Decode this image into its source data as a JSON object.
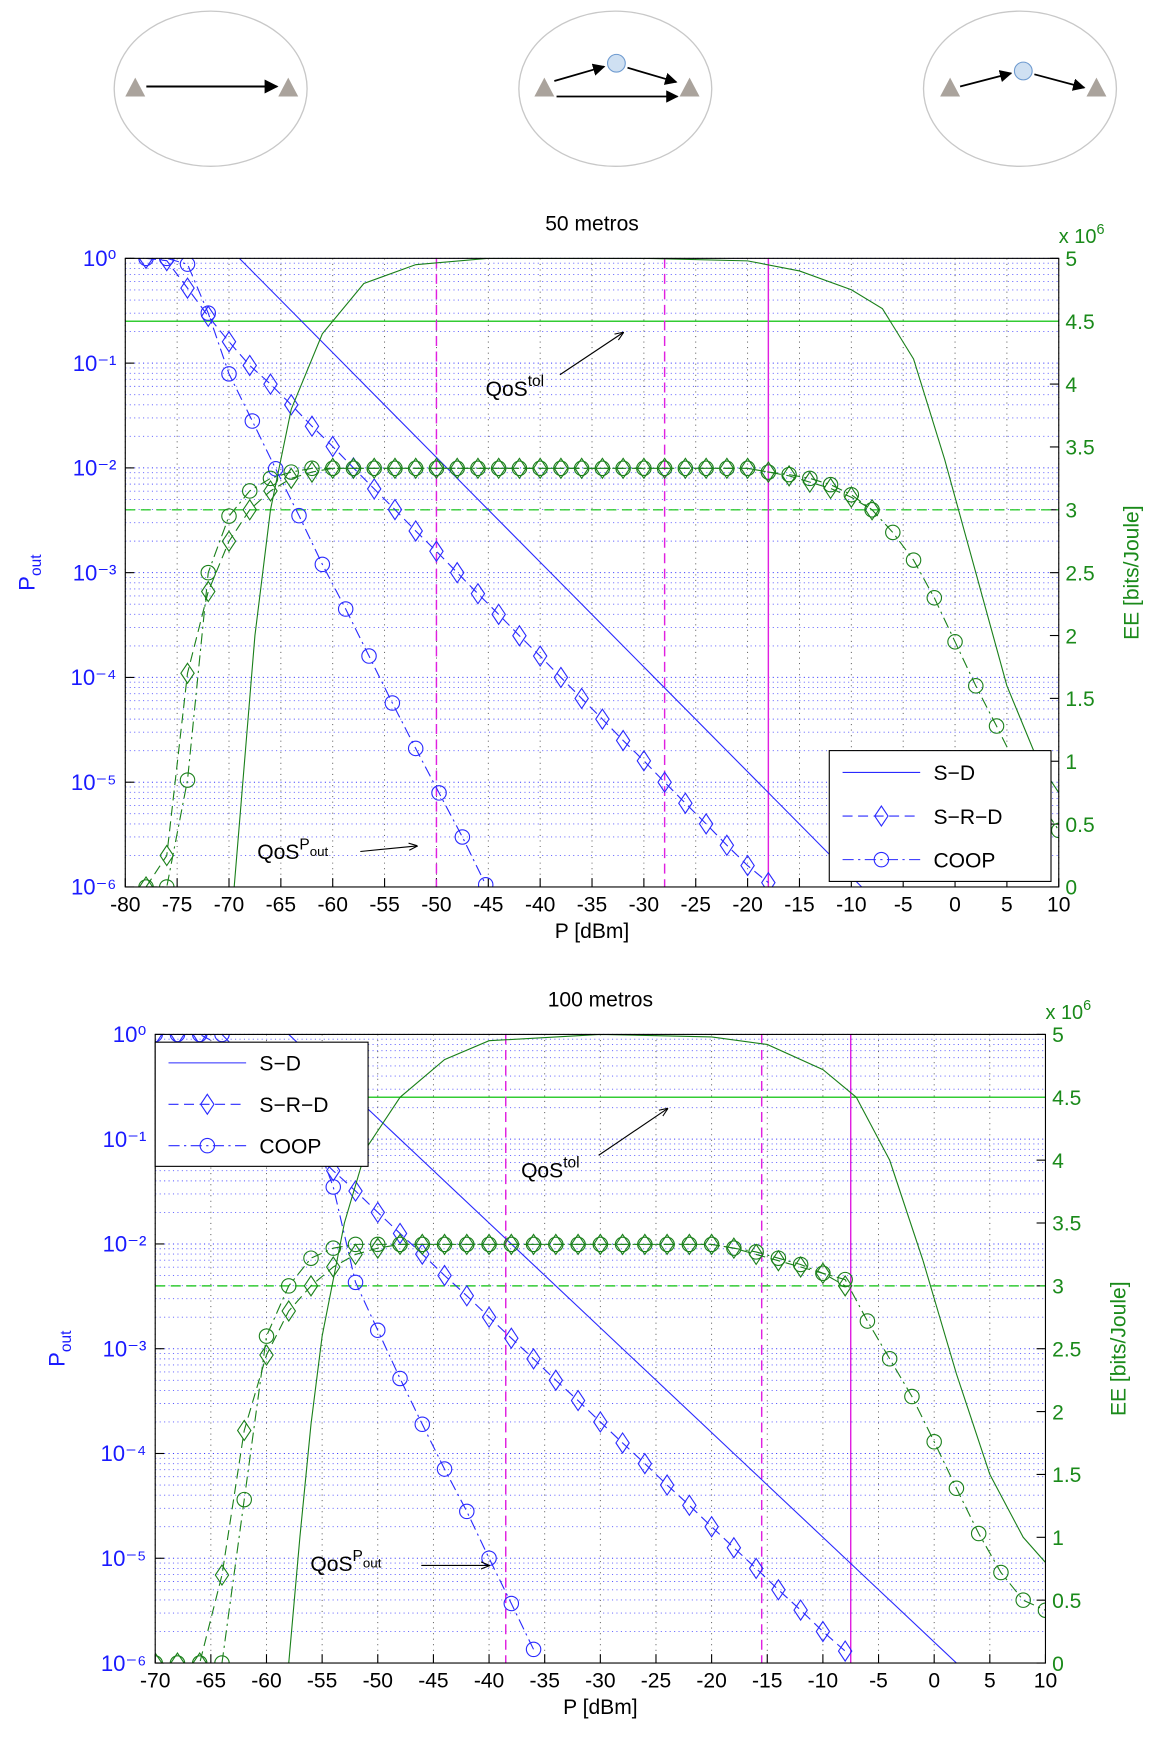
{
  "chart_data": [
    {
      "type": "line",
      "title": "50 metros",
      "xlabel": "P [dBm]",
      "ylabel": {
        "text": "P",
        "sub": "out"
      },
      "y2label": "EE [bits/Joule]",
      "y2_multiplier": {
        "text": "x 10",
        "sup": "6"
      },
      "xlim": [
        -80,
        10
      ],
      "xticks": [
        -80,
        -75,
        -70,
        -65,
        -60,
        -55,
        -50,
        -45,
        -40,
        -35,
        -30,
        -25,
        -20,
        -15,
        -10,
        -5,
        0,
        5,
        10
      ],
      "ylog": true,
      "ylim": [
        1e-06,
        1
      ],
      "yticks": [
        {
          "value": 1e-06,
          "label": "10⁻⁶"
        },
        {
          "value": 1e-05,
          "label": "10⁻⁵"
        },
        {
          "value": 0.0001,
          "label": "10⁻⁴"
        },
        {
          "value": 0.001,
          "label": "10⁻³"
        },
        {
          "value": 0.01,
          "label": "10⁻²"
        },
        {
          "value": 0.1,
          "label": "10⁻¹"
        },
        {
          "value": 1,
          "label": "10⁰"
        }
      ],
      "y2lim": [
        0,
        5
      ],
      "y2ticks": [
        0,
        0.5,
        1,
        1.5,
        2,
        2.5,
        3,
        3.5,
        4,
        4.5,
        5
      ],
      "grid": true,
      "ycolor": "#1a1aff",
      "y2color": "#1a8a1a",
      "legend": "lower right",
      "series": [
        {
          "name": "S−D",
          "color": "#2a2aff",
          "dash": "solid",
          "marker": null,
          "x": [
            -69,
            -59,
            -49,
            -39,
            -29,
            -19,
            -9
          ],
          "values": [
            1,
            0.1,
            0.01,
            0.001,
            0.0001,
            1e-05,
            1e-06
          ]
        },
        {
          "name": "S−R−D",
          "color": "#2a2aff",
          "dash": "dashed",
          "marker": "diamond",
          "x": [
            -78,
            -76,
            -74,
            -72,
            -70,
            -68,
            -66,
            -64,
            -62,
            -60,
            -58,
            -56,
            -54,
            -52,
            -50,
            -48,
            -46,
            -44,
            -42,
            -40,
            -38,
            -36,
            -34,
            -32,
            -30,
            -28,
            -26,
            -24,
            -22,
            -20,
            -18
          ],
          "values": [
            1,
            0.95,
            0.52,
            0.28,
            0.16,
            0.095,
            0.063,
            0.04,
            0.025,
            0.016,
            0.01,
            0.0063,
            0.004,
            0.0025,
            0.0016,
            0.001,
            0.00063,
            0.0004,
            0.00025,
            0.00016,
            0.0001,
            6.3e-05,
            4e-05,
            2.5e-05,
            1.6e-05,
            1e-05,
            6.3e-06,
            4e-06,
            2.5e-06,
            1.6e-06,
            1.1e-06
          ]
        },
        {
          "name": "COOP",
          "color": "#2a2aff",
          "dash": "dashdot",
          "marker": "circle",
          "x": [
            -78,
            -76,
            -74,
            -72,
            -70,
            -67.75,
            -65.5,
            -63.25,
            -61,
            -58.75,
            -56.5,
            -54.25,
            -52,
            -49.75,
            -47.5,
            -45.25
          ],
          "values": [
            1,
            1,
            0.88,
            0.3,
            0.079,
            0.028,
            0.0098,
            0.0035,
            0.0012,
            0.00045,
            0.00016,
            5.7e-05,
            2.1e-05,
            7.9e-06,
            3e-06,
            1.05e-06
          ]
        },
        {
          "axis": "y2",
          "color": "#1a801a",
          "dash": "solid",
          "marker": null,
          "x": [
            -69.5,
            -68.5,
            -67.5,
            -66,
            -64,
            -61,
            -57,
            -52,
            -45,
            -30,
            -20,
            -15,
            -10,
            -7,
            -4,
            -1,
            2,
            5,
            8,
            10
          ],
          "values": [
            0,
            1,
            2,
            3,
            3.8,
            4.4,
            4.8,
            4.95,
            5,
            5,
            4.98,
            4.9,
            4.75,
            4.6,
            4.2,
            3.4,
            2.5,
            1.6,
            1,
            0.75
          ]
        },
        {
          "axis": "y2",
          "color": "#1a801a",
          "dash": "dashed",
          "marker": "diamond",
          "x": [
            -78,
            -76,
            -74,
            -72,
            -70,
            -68,
            -66,
            -64,
            -62,
            -60,
            -58,
            -56,
            -54,
            -52,
            -50,
            -48,
            -46,
            -44,
            -42,
            -40,
            -38,
            -36,
            -34,
            -32,
            -30,
            -28,
            -26,
            -24,
            -22,
            -20,
            -18,
            -16,
            -14,
            -12,
            -10,
            -8
          ],
          "values": [
            0,
            0.25,
            1.7,
            2.35,
            2.75,
            3,
            3.15,
            3.25,
            3.3,
            3.33,
            3.33,
            3.33,
            3.33,
            3.33,
            3.33,
            3.33,
            3.33,
            3.33,
            3.33,
            3.33,
            3.33,
            3.33,
            3.33,
            3.33,
            3.33,
            3.33,
            3.33,
            3.33,
            3.33,
            3.33,
            3.3,
            3.27,
            3.22,
            3.17,
            3.1,
            3
          ]
        },
        {
          "axis": "y2",
          "color": "#1a801a",
          "dash": "dashdot",
          "marker": "circle",
          "x": [
            -78,
            -76,
            -74,
            -72,
            -70,
            -68,
            -66,
            -64,
            -62,
            -60,
            -58,
            -56,
            -54,
            -52,
            -50,
            -48,
            -46,
            -44,
            -42,
            -40,
            -38,
            -36,
            -34,
            -32,
            -30,
            -28,
            -26,
            -24,
            -22,
            -20,
            -18,
            -16,
            -14,
            -12,
            -10,
            -8,
            -6,
            -4,
            -2,
            0,
            2,
            4,
            6,
            8,
            10
          ],
          "values": [
            0,
            0,
            0.85,
            2.5,
            2.95,
            3.15,
            3.25,
            3.3,
            3.33,
            3.33,
            3.33,
            3.33,
            3.33,
            3.33,
            3.33,
            3.33,
            3.33,
            3.33,
            3.33,
            3.33,
            3.33,
            3.33,
            3.33,
            3.33,
            3.33,
            3.33,
            3.33,
            3.33,
            3.33,
            3.33,
            3.3,
            3.28,
            3.25,
            3.2,
            3.12,
            3,
            2.82,
            2.6,
            2.3,
            1.95,
            1.6,
            1.28,
            0.95,
            0.7,
            0.45
          ]
        }
      ],
      "hlines": [
        {
          "y": 4.5,
          "axis": "y2",
          "color": "#33cc33",
          "dash": "solid"
        },
        {
          "y": 3,
          "axis": "y2",
          "color": "#33cc33",
          "dash": "dashed"
        }
      ],
      "vlines": [
        {
          "x": -50,
          "color": "#e020e0",
          "dash": "dashed"
        },
        {
          "x": -28,
          "color": "#e020e0",
          "dash": "dashed"
        },
        {
          "x": -18,
          "color": "#e020e0",
          "dash": "solid"
        }
      ],
      "annotations": [
        {
          "text": "QoS",
          "sup": "tol"
        },
        {
          "text": "QoS",
          "sup": "P",
          "sup_sub": "out"
        }
      ]
    },
    {
      "type": "line",
      "title": "100 metros",
      "xlabel": "P [dBm]",
      "ylabel": {
        "text": "P",
        "sub": "out"
      },
      "y2label": "EE [bits/Joule]",
      "y2_multiplier": {
        "text": "x 10",
        "sup": "6"
      },
      "xlim": [
        -70,
        10
      ],
      "xticks": [
        -70,
        -65,
        -60,
        -55,
        -50,
        -45,
        -40,
        -35,
        -30,
        -25,
        -20,
        -15,
        -10,
        -5,
        0,
        5,
        10
      ],
      "ylog": true,
      "ylim": [
        1e-06,
        1
      ],
      "yticks": [
        {
          "value": 1e-06,
          "label": "10⁻⁶"
        },
        {
          "value": 1e-05,
          "label": "10⁻⁵"
        },
        {
          "value": 0.0001,
          "label": "10⁻⁴"
        },
        {
          "value": 0.001,
          "label": "10⁻³"
        },
        {
          "value": 0.01,
          "label": "10⁻²"
        },
        {
          "value": 0.1,
          "label": "10⁻¹"
        },
        {
          "value": 1,
          "label": "10⁰"
        }
      ],
      "y2lim": [
        0,
        5
      ],
      "y2ticks": [
        0,
        0.5,
        1,
        1.5,
        2,
        2.5,
        3,
        3.5,
        4,
        4.5,
        5
      ],
      "grid": true,
      "ycolor": "#1a1aff",
      "y2color": "#1a8a1a",
      "legend": "upper left",
      "series": [
        {
          "name": "S−D",
          "color": "#2a2aff",
          "dash": "solid",
          "marker": null,
          "x": [
            -58,
            -48,
            -38,
            -28,
            -18,
            -8,
            2
          ],
          "values": [
            1,
            0.1,
            0.01,
            0.001,
            0.0001,
            1e-05,
            1e-06
          ]
        },
        {
          "name": "S−R−D",
          "color": "#2a2aff",
          "dash": "dashed",
          "marker": "diamond",
          "x": [
            -70,
            -68,
            -66,
            -62,
            -60,
            -58,
            -56,
            -54,
            -52,
            -50,
            -48,
            -46,
            -44,
            -42,
            -40,
            -38,
            -36,
            -34,
            -32,
            -30,
            -28,
            -26,
            -24,
            -22,
            -20,
            -18,
            -16,
            -14,
            -12,
            -10,
            -8
          ],
          "values": [
            1,
            1,
            1,
            0.6,
            0.35,
            0.2,
            0.08,
            0.05,
            0.032,
            0.02,
            0.0126,
            0.008,
            0.005,
            0.0032,
            0.002,
            0.00126,
            0.0008,
            0.0005,
            0.00032,
            0.0002,
            0.000126,
            8e-05,
            5e-05,
            3.2e-05,
            2e-05,
            1.26e-05,
            8e-06,
            5e-06,
            3.2e-06,
            2e-06,
            1.3e-06
          ]
        },
        {
          "name": "COOP",
          "color": "#2a2aff",
          "dash": "dashdot",
          "marker": "circle",
          "x": [
            -70,
            -68,
            -66,
            -64,
            -56,
            -54,
            -52,
            -50,
            -48,
            -46,
            -44,
            -42,
            -40,
            -38,
            -36
          ],
          "values": [
            1,
            1,
            1,
            1,
            0.13,
            0.035,
            0.0043,
            0.0015,
            0.00052,
            0.00019,
            7.1e-05,
            2.8e-05,
            1e-05,
            3.7e-06,
            1.35e-06
          ]
        },
        {
          "axis": "y2",
          "color": "#1a801a",
          "dash": "solid",
          "marker": null,
          "x": [
            -58,
            -57,
            -56,
            -55,
            -53,
            -51,
            -48,
            -44,
            -40,
            -30,
            -20,
            -15,
            -10,
            -7,
            -4,
            -1,
            2,
            5,
            8,
            10
          ],
          "values": [
            0,
            1,
            1.9,
            2.6,
            3.5,
            4.1,
            4.5,
            4.8,
            4.95,
            5,
            4.98,
            4.92,
            4.72,
            4.5,
            4,
            3.2,
            2.3,
            1.5,
            1,
            0.8
          ]
        },
        {
          "axis": "y2",
          "color": "#1a801a",
          "dash": "dashed",
          "marker": "diamond",
          "x": [
            -70,
            -68,
            -66,
            -64,
            -62,
            -60,
            -58,
            -56,
            -54,
            -52,
            -50,
            -48,
            -46,
            -44,
            -42,
            -40,
            -38,
            -36,
            -34,
            -32,
            -30,
            -28,
            -26,
            -24,
            -22,
            -20,
            -18,
            -16,
            -14,
            -12,
            -10,
            -8
          ],
          "values": [
            0,
            0,
            0,
            0.7,
            1.85,
            2.45,
            2.8,
            3,
            3.15,
            3.25,
            3.3,
            3.33,
            3.33,
            3.33,
            3.33,
            3.33,
            3.33,
            3.33,
            3.33,
            3.33,
            3.33,
            3.33,
            3.33,
            3.33,
            3.33,
            3.33,
            3.3,
            3.25,
            3.2,
            3.15,
            3.1,
            3
          ]
        },
        {
          "axis": "y2",
          "color": "#1a801a",
          "dash": "dashdot",
          "marker": "circle",
          "x": [
            -70,
            -68,
            -66,
            -64,
            -62,
            -60,
            -58,
            -56,
            -54,
            -52,
            -50,
            -48,
            -46,
            -44,
            -42,
            -40,
            -38,
            -36,
            -34,
            -32,
            -30,
            -28,
            -26,
            -24,
            -22,
            -20,
            -18,
            -16,
            -14,
            -12,
            -10,
            -8,
            -6,
            -4,
            -2,
            0,
            2,
            4,
            6,
            8,
            10
          ],
          "values": [
            0,
            0,
            0,
            0,
            1.3,
            2.6,
            3,
            3.22,
            3.3,
            3.33,
            3.33,
            3.33,
            3.33,
            3.33,
            3.33,
            3.33,
            3.33,
            3.33,
            3.33,
            3.33,
            3.33,
            3.33,
            3.33,
            3.33,
            3.33,
            3.33,
            3.3,
            3.27,
            3.22,
            3.17,
            3.1,
            3.05,
            2.72,
            2.42,
            2.12,
            1.76,
            1.39,
            1.03,
            0.72,
            0.5,
            0.42
          ]
        }
      ],
      "hlines": [
        {
          "y": 4.5,
          "axis": "y2",
          "color": "#33cc33",
          "dash": "solid"
        },
        {
          "y": 3,
          "axis": "y2",
          "color": "#33cc33",
          "dash": "dashed"
        }
      ],
      "vlines": [
        {
          "x": -38.5,
          "color": "#e020e0",
          "dash": "dashed"
        },
        {
          "x": -15.5,
          "color": "#e020e0",
          "dash": "dashed"
        },
        {
          "x": -7.5,
          "color": "#e020e0",
          "dash": "solid"
        }
      ],
      "annotations": [
        {
          "text": "QoS",
          "sup": "tol"
        },
        {
          "text": "QoS",
          "sup": "P",
          "sup_sub": "out"
        }
      ]
    }
  ]
}
